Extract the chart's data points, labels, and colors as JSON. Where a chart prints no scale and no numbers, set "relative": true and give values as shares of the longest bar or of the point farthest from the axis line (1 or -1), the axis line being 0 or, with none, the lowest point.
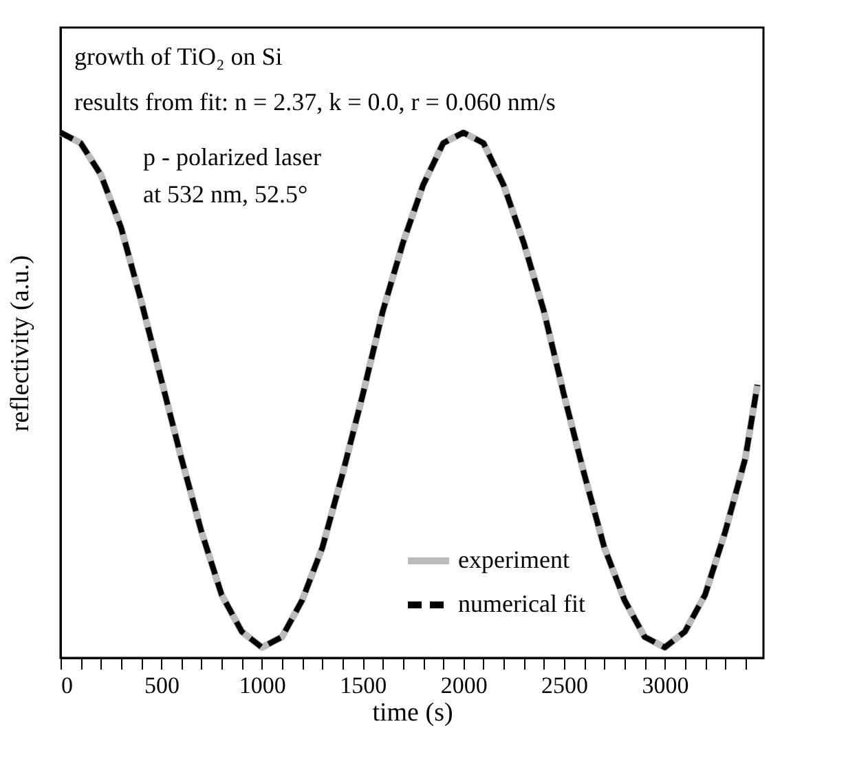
{
  "chart_data": {
    "type": "line",
    "relative": true,
    "xlabel": "time  (s)",
    "ylabel": "reflectivity (a.u.)",
    "annotations": [
      "growth of TiO₂ on Si",
      "results from fit: n = 2.37, k = 0.0, r = 0.060 nm/s",
      "p - polarized laser",
      "at 532 nm, 52.5°"
    ],
    "x": [
      0,
      100,
      200,
      300,
      400,
      500,
      600,
      700,
      800,
      900,
      1000,
      1100,
      1200,
      1300,
      1400,
      1500,
      1600,
      1700,
      1800,
      1900,
      2000,
      2100,
      2200,
      2300,
      2400,
      2500,
      2600,
      2700,
      2800,
      2900,
      3000,
      3100,
      3200,
      3300,
      3400,
      3460
    ],
    "series": [
      {
        "name": "experiment",
        "color": "#bbbbbb",
        "line_style": "solid",
        "values": [
          1.0,
          0.98,
          0.92,
          0.82,
          0.68,
          0.53,
          0.38,
          0.24,
          0.12,
          0.05,
          0.02,
          0.04,
          0.11,
          0.21,
          0.35,
          0.5,
          0.66,
          0.79,
          0.9,
          0.98,
          1.0,
          0.98,
          0.9,
          0.79,
          0.66,
          0.5,
          0.35,
          0.21,
          0.11,
          0.04,
          0.02,
          0.05,
          0.12,
          0.24,
          0.38,
          0.52
        ]
      },
      {
        "name": "numerical fit",
        "color": "#000000",
        "line_style": "dashed",
        "values": [
          1.0,
          0.98,
          0.92,
          0.82,
          0.68,
          0.53,
          0.38,
          0.24,
          0.12,
          0.05,
          0.02,
          0.04,
          0.11,
          0.21,
          0.35,
          0.5,
          0.66,
          0.79,
          0.9,
          0.98,
          1.0,
          0.98,
          0.9,
          0.79,
          0.66,
          0.5,
          0.35,
          0.21,
          0.11,
          0.04,
          0.02,
          0.05,
          0.12,
          0.24,
          0.38,
          0.52
        ]
      }
    ],
    "xlim": [
      0,
      3490
    ],
    "xticks": [
      0,
      {
        "value": 100,
        "label": null
      },
      {
        "value": 200,
        "label": null
      },
      {
        "value": 300,
        "label": null
      },
      {
        "value": 400,
        "label": null
      },
      500,
      {
        "value": 600,
        "label": null
      },
      {
        "value": 700,
        "label": null
      },
      {
        "value": 800,
        "label": null
      },
      {
        "value": 900,
        "label": null
      },
      1000,
      {
        "value": 1100,
        "label": null
      },
      {
        "value": 1200,
        "label": null
      },
      {
        "value": 1300,
        "label": null
      },
      {
        "value": 1400,
        "label": null
      },
      1500,
      {
        "value": 1600,
        "label": null
      },
      {
        "value": 1700,
        "label": null
      },
      {
        "value": 1800,
        "label": null
      },
      {
        "value": 1900,
        "label": null
      },
      2000,
      {
        "value": 2100,
        "label": null
      },
      {
        "value": 2200,
        "label": null
      },
      {
        "value": 2300,
        "label": null
      },
      {
        "value": 2400,
        "label": null
      },
      2500,
      {
        "value": 2600,
        "label": null
      },
      {
        "value": 2700,
        "label": null
      },
      {
        "value": 2800,
        "label": null
      },
      {
        "value": 2900,
        "label": null
      },
      3000,
      {
        "value": 3100,
        "label": null
      },
      {
        "value": 3200,
        "label": null
      },
      {
        "value": 3300,
        "label": null
      },
      {
        "value": 3400,
        "label": null
      }
    ],
    "tick_labels": "x",
    "grid": false,
    "legend": "bottom",
    "marker": "none"
  }
}
